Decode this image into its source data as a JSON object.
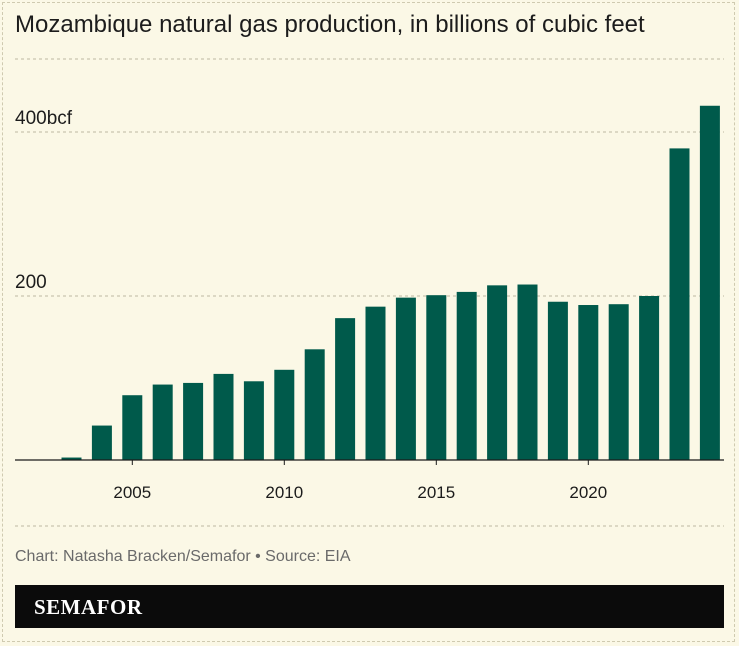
{
  "title": "Mozambique natural gas production, in billions of cubic feet",
  "credit": "Chart: Natasha Bracken/Semafor • Source: EIA",
  "brand": "SEMAFOR",
  "colors": {
    "bar": "#005a4b",
    "background": "#fbf8e6",
    "grid": "#bdb8a3"
  },
  "chart_data": {
    "type": "bar",
    "title": "Mozambique natural gas production, in billions of cubic feet",
    "xlabel": "",
    "ylabel": "",
    "ylim": [
      0,
      490
    ],
    "yticks": [
      {
        "value": 200,
        "label": "200"
      },
      {
        "value": 400,
        "label": "400bcf"
      }
    ],
    "xticks": [
      {
        "value": 2005,
        "label": "2005"
      },
      {
        "value": 2010,
        "label": "2010"
      },
      {
        "value": 2015,
        "label": "2015"
      },
      {
        "value": 2020,
        "label": "2020"
      }
    ],
    "grid": true,
    "x": [
      2003,
      2004,
      2005,
      2006,
      2007,
      2008,
      2009,
      2010,
      2011,
      2012,
      2013,
      2014,
      2015,
      2016,
      2017,
      2018,
      2019,
      2020,
      2021,
      2022,
      2023,
      2024
    ],
    "values": [
      3,
      42,
      79,
      92,
      94,
      105,
      96,
      110,
      135,
      173,
      187,
      198,
      201,
      205,
      213,
      214,
      193,
      189,
      190,
      200,
      380,
      432
    ]
  }
}
